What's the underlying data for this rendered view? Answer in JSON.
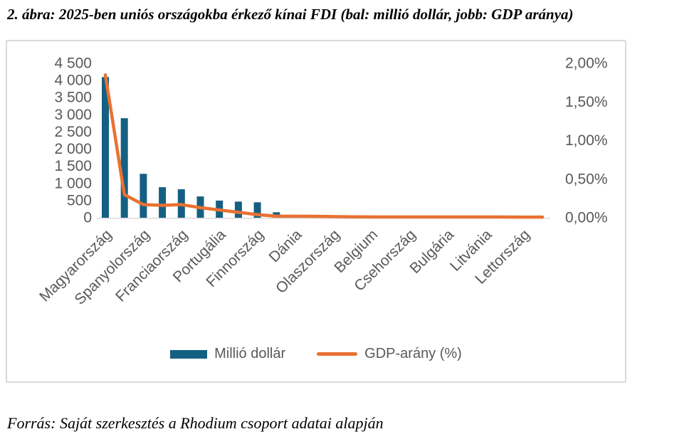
{
  "title": "2. ábra: 2025-ben uniós országokba érkező kínai FDI (bal: millió dollár, jobb: GDP aránya)",
  "source": "Forrás: Saját szerkesztés a Rhodium csoport adatai alapján",
  "colors": {
    "bar": "#156082",
    "line": "#E97132",
    "axis_text": "#595959",
    "axis_line": "#D9D9D9",
    "frame_border": "#D9D9D9"
  },
  "chart_data": {
    "type": "bar",
    "subtype": "combo-bar-line-dual-axis",
    "title": "2. ábra: 2025-ben uniós országokba érkező kínai FDI (bal: millió dollár, jobb: GDP aránya)",
    "categories": [
      "Magyarország",
      "",
      "Spanyolország",
      "",
      "Franciaország",
      "",
      "Portugália",
      "",
      "Finnország",
      "",
      "Dánia",
      "",
      "Olaszország",
      "",
      "Belgium",
      "",
      "Csehország",
      "",
      "Bulgária",
      "",
      "Litvánia",
      "",
      "Lettország",
      ""
    ],
    "category_label_note": "axis labels shown for every 2nd category; bars between labels belong to unlabeled countries",
    "series": [
      {
        "name": "Millió dollár",
        "type": "bar",
        "axis": "left",
        "color": "#156082",
        "values": [
          4100,
          2900,
          1280,
          890,
          830,
          620,
          500,
          470,
          450,
          160,
          20,
          15,
          12,
          10,
          8,
          6,
          5,
          4,
          4,
          3,
          3,
          2,
          2,
          1
        ]
      },
      {
        "name": "GDP-arány (%)",
        "type": "line",
        "axis": "right",
        "color": "#E97132",
        "values": [
          1.85,
          0.3,
          0.17,
          0.16,
          0.17,
          0.13,
          0.1,
          0.07,
          0.04,
          0.02,
          0.02,
          0.018,
          0.015,
          0.012,
          0.01,
          0.01,
          0.01,
          0.01,
          0.01,
          0.01,
          0.01,
          0.009,
          0.008,
          0.008
        ]
      }
    ],
    "left_axis": {
      "min": 0,
      "max": 4500,
      "step": 500,
      "tick_labels": [
        "0",
        "500",
        "1 000",
        "1 500",
        "2 000",
        "2 500",
        "3 000",
        "3 500",
        "4 000",
        "4 500"
      ]
    },
    "right_axis": {
      "min": 0,
      "max": 2,
      "step": 0.5,
      "tick_labels": [
        "0,00%",
        "0,50%",
        "1,00%",
        "1,50%",
        "2,00%"
      ]
    },
    "legend": {
      "position": "bottom",
      "entries": [
        "Millió dollár",
        "GDP-arány (%)"
      ]
    },
    "grid": false
  }
}
